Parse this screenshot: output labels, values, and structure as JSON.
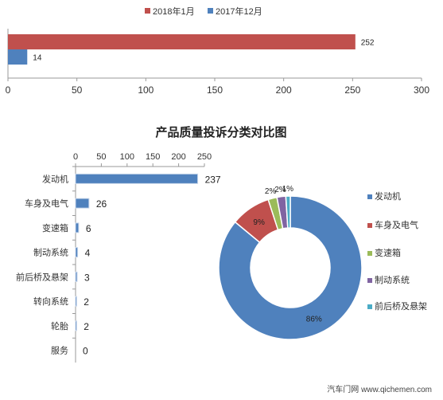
{
  "colors": {
    "red": "#c0504d",
    "blue": "#4f81bd",
    "green": "#9bbb59",
    "purple": "#8064a2",
    "teal": "#4bacc6",
    "axis": "#999999"
  },
  "chart_data": [
    {
      "type": "bar",
      "orientation": "horizontal",
      "series": [
        {
          "name": "2018年1月",
          "values": [
            252
          ],
          "color": "#c0504d"
        },
        {
          "name": "2017年12月",
          "values": [
            14
          ],
          "color": "#4f81bd"
        }
      ],
      "xlim": [
        0,
        300
      ],
      "xticks": [
        0,
        50,
        100,
        150,
        200,
        250,
        300
      ],
      "legend": "top",
      "grid": false
    },
    {
      "type": "bar",
      "orientation": "horizontal",
      "title": "产品质量投诉分类对比图",
      "categories": [
        "发动机",
        "车身及电气",
        "变速箱",
        "制动系统",
        "前后桥及悬架",
        "转向系统",
        "轮胎",
        "服务"
      ],
      "values": [
        237,
        26,
        6,
        4,
        3,
        2,
        2,
        0
      ],
      "xlim": [
        0,
        250
      ],
      "xticks": [
        0,
        50,
        100,
        150,
        200,
        250
      ],
      "color": "#4f81bd",
      "grid": false
    },
    {
      "type": "pie",
      "donut": true,
      "labels": [
        "发动机",
        "车身及电气",
        "变速箱",
        "制动系统",
        "前后桥及悬架"
      ],
      "values": [
        86,
        9,
        2,
        2,
        1
      ],
      "value_labels": [
        "86%",
        "9%",
        "2%",
        "2%",
        "1%"
      ],
      "colors": [
        "#4f81bd",
        "#c0504d",
        "#9bbb59",
        "#8064a2",
        "#4bacc6"
      ],
      "legend": "right"
    }
  ],
  "watermark": "汽车门网 www.qichemen.com"
}
